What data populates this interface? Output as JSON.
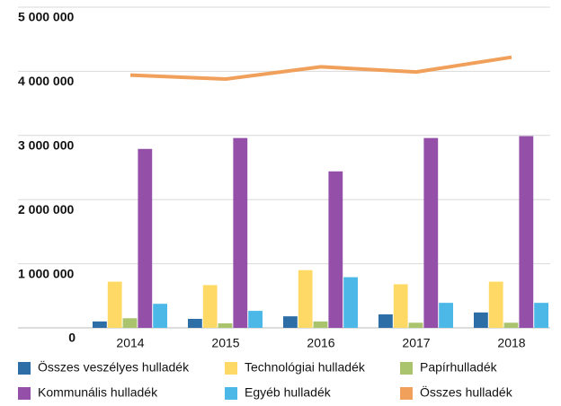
{
  "chart_data": {
    "type": "bar",
    "categories": [
      "2014",
      "2015",
      "2016",
      "2017",
      "2018"
    ],
    "series": [
      {
        "name": "Összes veszélyes hulladék",
        "color": "#2e6ea6",
        "values": [
          100000,
          140000,
          180000,
          210000,
          240000
        ]
      },
      {
        "name": "Technológiai hulladék",
        "color": "#ffd966",
        "values": [
          720000,
          667000,
          900000,
          680000,
          720000
        ]
      },
      {
        "name": "Papírhulladék",
        "color": "#a9c46c",
        "values": [
          150000,
          70000,
          100000,
          80000,
          80000
        ]
      },
      {
        "name": "Kommunális hulladék",
        "color": "#9450a8",
        "values": [
          2790000,
          2960000,
          2440000,
          2960000,
          2990000
        ]
      },
      {
        "name": "Egyéb hulladék",
        "color": "#4cb8e8",
        "values": [
          375000,
          265000,
          790000,
          390000,
          390000
        ]
      },
      {
        "name": "Összes hulladék",
        "color": "#f0a05a",
        "type": "line",
        "values": [
          3940000,
          3880000,
          4070000,
          3990000,
          4220000
        ]
      }
    ],
    "ylim": [
      0,
      5000000
    ],
    "yticks": [
      0,
      {
        "value": 1000000,
        "label": "1 000 000"
      },
      {
        "value": 2000000,
        "label": "2 000 000"
      },
      {
        "value": 3000000,
        "label": "3 000 000"
      },
      {
        "value": 4000000,
        "label": "4 000 000"
      },
      {
        "value": 5000000,
        "label": "5 000 000"
      }
    ],
    "grid": true,
    "legend": "bottom"
  }
}
